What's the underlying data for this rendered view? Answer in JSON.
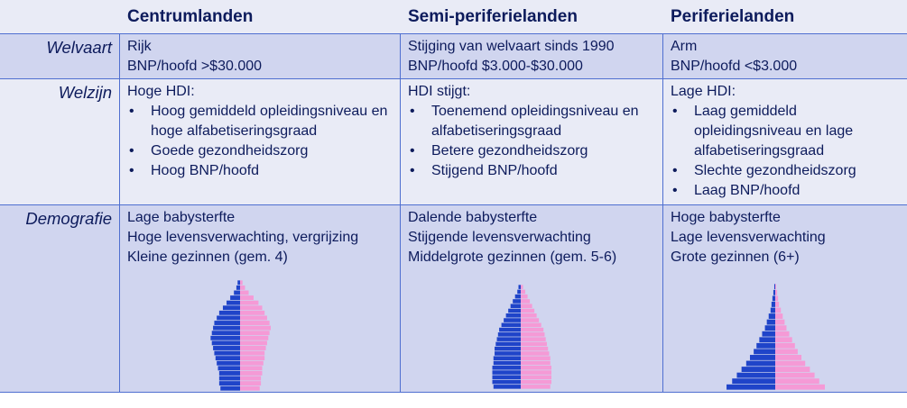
{
  "header": {
    "col1": "Centrumlanden",
    "col2": "Semi-periferielanden",
    "col3": "Periferielanden"
  },
  "rows": {
    "welvaart": {
      "label": "Welvaart",
      "centrum": [
        "Rijk",
        "BNP/hoofd >$30.000"
      ],
      "semi": [
        "Stijging van welvaart sinds 1990",
        "BNP/hoofd $3.000-$30.000"
      ],
      "periferie": [
        "Arm",
        "BNP/hoofd <$3.000"
      ]
    },
    "welzijn": {
      "label": "Welzijn",
      "centrum": {
        "intro": "Hoge HDI:",
        "bullets": [
          "Hoog gemiddeld opleidingsniveau en hoge alfabetiseringsgraad",
          "Goede gezondheidszorg",
          "Hoog BNP/hoofd"
        ]
      },
      "semi": {
        "intro": "HDI stijgt:",
        "bullets": [
          "Toenemend opleidingsniveau en alfabetiseringsgraad",
          "Betere gezondheidszorg",
          "Stijgend BNP/hoofd"
        ]
      },
      "periferie": {
        "intro": "Lage HDI:",
        "bullets": [
          "Laag gemiddeld opleidingsniveau en lage alfabetiseringsgraad",
          "Slechte gezondheidszorg",
          "Laag BNP/hoofd"
        ]
      }
    },
    "demografie": {
      "label": "Demografie",
      "centrum": [
        "Lage babysterfte",
        "Hoge levensverwachting, vergrijzing",
        "Kleine gezinnen (gem. 4)"
      ],
      "semi": [
        "Dalende babysterfte",
        "Stijgende levensverwachting",
        "Middelgrote gezinnen (gem. 5-6)"
      ],
      "periferie": [
        "Hoge babysterfte",
        "Lage levensverwachting",
        "Grote gezinnen (6+)"
      ]
    }
  },
  "colors": {
    "male": "#1f44c9",
    "female": "#f59ad6",
    "border": "#4f6fd0",
    "text": "#0d1b5c"
  },
  "pyramids": {
    "centrum": {
      "male": [
        2,
        3,
        5,
        8,
        11,
        14,
        17,
        19,
        21,
        22,
        23,
        24,
        23,
        22,
        21,
        20,
        19,
        18,
        17,
        17,
        17,
        16
      ],
      "female": [
        2,
        4,
        7,
        11,
        15,
        18,
        20,
        22,
        24,
        25,
        24,
        23,
        22,
        21,
        20,
        20,
        19,
        18,
        18,
        17,
        17,
        16
      ]
    },
    "semi": {
      "male": [
        2,
        3,
        5,
        7,
        9,
        11,
        13,
        15,
        17,
        19,
        20,
        21,
        22,
        23,
        23,
        24,
        24,
        25,
        25,
        25,
        25,
        24
      ],
      "female": [
        2,
        4,
        6,
        8,
        10,
        12,
        14,
        16,
        18,
        20,
        21,
        22,
        23,
        24,
        25,
        26,
        26,
        27,
        27,
        27,
        27,
        26
      ]
    },
    "periferie": {
      "male": [
        1,
        2,
        3,
        4,
        5,
        7,
        9,
        11,
        14,
        17,
        20,
        23,
        27,
        31,
        36,
        41,
        46,
        52
      ],
      "female": [
        1,
        2,
        3,
        4,
        6,
        8,
        10,
        12,
        15,
        18,
        21,
        24,
        28,
        32,
        37,
        42,
        47,
        53
      ]
    }
  }
}
